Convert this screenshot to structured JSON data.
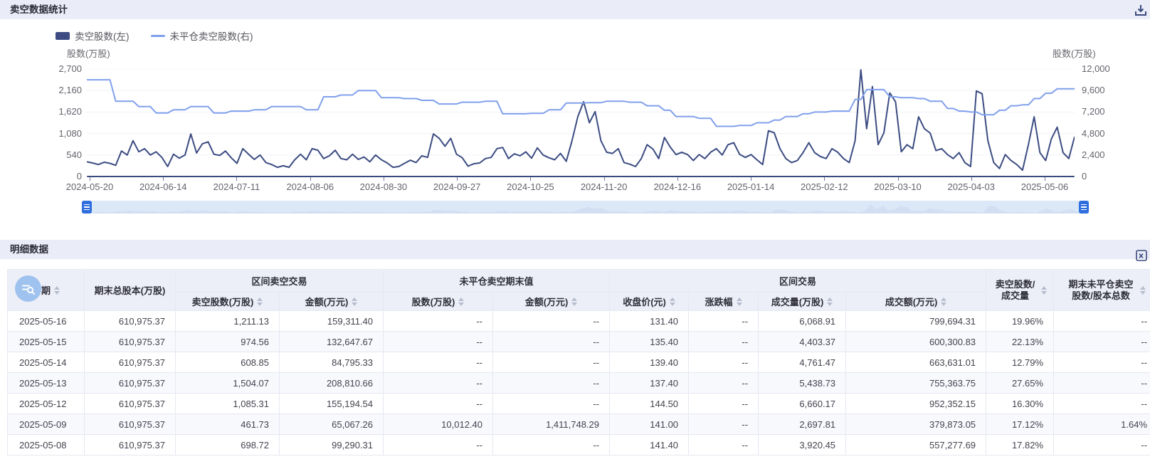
{
  "colors": {
    "accent": "#2e6ede",
    "series_dark": "#3c4c82",
    "series_light": "#81a0ec",
    "panel_strip": "#eaecf7",
    "table_header_bg": "#edeff8",
    "row_stripe": "#f8f9fd"
  },
  "icons": {
    "download": "download-icon",
    "export": "export-excel-icon",
    "column_filter": "column-search-icon",
    "sort": "sort-carets"
  },
  "chart_panel": {
    "title": "卖空数据统计",
    "legend": [
      {
        "label": "卖空股数(左)"
      },
      {
        "label": "未平仓卖空股数(右)"
      }
    ],
    "left_axis_title": "股数(万股)",
    "right_axis_title": "股数(万股)"
  },
  "chart_data": {
    "type": "line",
    "title": "卖空数据统计",
    "grid": true,
    "legend_position": "top-left",
    "x_tick_labels": [
      "2024-05-20",
      "2024-06-14",
      "2024-07-11",
      "2024-08-06",
      "2024-08-30",
      "2024-09-27",
      "2024-10-25",
      "2024-11-20",
      "2024-12-16",
      "2025-01-14",
      "2025-02-12",
      "2025-03-10",
      "2025-04-03",
      "2025-05-06"
    ],
    "left_axis": {
      "label": "股数(万股)",
      "min": 0,
      "max": 2700,
      "ticks": [
        "2,700",
        "2,160",
        "1,620",
        "1,080",
        "540",
        "0"
      ]
    },
    "right_axis": {
      "label": "股数(万股)",
      "min": 0,
      "max": 12000,
      "ticks": [
        "12,000",
        "9,600",
        "7,200",
        "4,800",
        "2,400",
        "0"
      ]
    },
    "series": [
      {
        "name": "卖空股数(左)",
        "axis": "left",
        "color": "#3c4c82",
        "values": [
          370,
          340,
          300,
          360,
          330,
          280,
          640,
          540,
          900,
          620,
          700,
          540,
          620,
          480,
          250,
          560,
          460,
          540,
          1070,
          590,
          820,
          870,
          560,
          530,
          640,
          470,
          330,
          700,
          560,
          430,
          540,
          350,
          300,
          230,
          270,
          230,
          420,
          560,
          420,
          700,
          660,
          450,
          520,
          660,
          450,
          420,
          560,
          430,
          490,
          370,
          540,
          420,
          340,
          230,
          250,
          330,
          410,
          350,
          520,
          480,
          1070,
          960,
          760,
          960,
          560,
          470,
          260,
          320,
          340,
          450,
          480,
          700,
          730,
          450,
          570,
          520,
          620,
          460,
          720,
          540,
          470,
          420,
          580,
          380,
          900,
          1500,
          1880,
          1350,
          1630,
          900,
          610,
          580,
          700,
          350,
          310,
          250,
          450,
          800,
          690,
          450,
          980,
          740,
          550,
          610,
          550,
          400,
          550,
          450,
          610,
          700,
          540,
          800,
          850,
          560,
          480,
          550,
          420,
          300,
          1150,
          1100,
          700,
          450,
          350,
          400,
          600,
          850,
          600,
          500,
          450,
          700,
          610,
          450,
          350,
          900,
          2680,
          1200,
          2260,
          800,
          1100,
          2100,
          1880,
          620,
          800,
          700,
          1500,
          1200,
          1090,
          650,
          700,
          550,
          450,
          600,
          350,
          250,
          2150,
          2080,
          900,
          350,
          200,
          550,
          400,
          300,
          160,
          800,
          1500,
          600,
          400,
          950,
          1240,
          600,
          450,
          1000
        ]
      },
      {
        "name": "未平仓卖空股数(右)",
        "axis": "right",
        "color": "#81a0ec",
        "values_runs": [
          [
            10800,
            5
          ],
          [
            8400,
            4
          ],
          [
            7800,
            3
          ],
          [
            7100,
            3
          ],
          [
            7450,
            3
          ],
          [
            7800,
            4
          ],
          [
            7100,
            3
          ],
          [
            7300,
            4
          ],
          [
            7450,
            3
          ],
          [
            7800,
            6
          ],
          [
            7450,
            3
          ],
          [
            8900,
            3
          ],
          [
            9100,
            3
          ],
          [
            9600,
            4
          ],
          [
            8800,
            4
          ],
          [
            8700,
            3
          ],
          [
            8500,
            3
          ],
          [
            8100,
            4
          ],
          [
            8300,
            4
          ],
          [
            8400,
            3
          ],
          [
            7000,
            5
          ],
          [
            7050,
            3
          ],
          [
            7450,
            3
          ],
          [
            8200,
            4
          ],
          [
            8250,
            3
          ],
          [
            8400,
            4
          ],
          [
            8300,
            3
          ],
          [
            7900,
            3
          ],
          [
            7400,
            2
          ],
          [
            6700,
            4
          ],
          [
            6500,
            3
          ],
          [
            5600,
            4
          ],
          [
            5700,
            3
          ],
          [
            6000,
            3
          ],
          [
            6300,
            2
          ],
          [
            6700,
            3
          ],
          [
            7000,
            2
          ],
          [
            7200,
            3
          ],
          [
            7300,
            4
          ],
          [
            8600,
            2
          ],
          [
            9700,
            4
          ],
          [
            8900,
            2
          ],
          [
            8800,
            3
          ],
          [
            8700,
            2
          ],
          [
            8400,
            3
          ],
          [
            7600,
            2
          ],
          [
            7300,
            2
          ],
          [
            7200,
            2
          ],
          [
            6900,
            3
          ],
          [
            7400,
            2
          ],
          [
            7900,
            2
          ],
          [
            8000,
            2
          ],
          [
            8700,
            2
          ],
          [
            9300,
            2
          ],
          [
            9800,
            4
          ]
        ]
      }
    ]
  },
  "table_panel": {
    "title": "明细数据",
    "header": {
      "date": "日期",
      "total_share": "期末总股本(万股)",
      "group_short": "区间卖空交易",
      "short_shares": "卖空股数(万股)",
      "short_amount": "金额(万元)",
      "group_open": "未平仓卖空期末值",
      "open_shares": "股数(万股)",
      "open_amount": "金额(万元)",
      "group_trade": "区间交易",
      "close_price": "收盘价(元)",
      "change": "涨跌幅",
      "volume": "成交量(万股)",
      "turnover": "成交额(万元)",
      "ratio_short_vol": "卖空股数/成交量",
      "ratio_open_total": "期末未平仓卖空股数/股本总数"
    },
    "rows": [
      [
        "2025-05-16",
        "610,975.37",
        "1,211.13",
        "159,311.40",
        "--",
        "--",
        "131.40",
        "--",
        "6,068.91",
        "799,694.31",
        "19.96%",
        "--"
      ],
      [
        "2025-05-15",
        "610,975.37",
        "974.56",
        "132,647.67",
        "--",
        "--",
        "135.40",
        "--",
        "4,403.37",
        "600,300.83",
        "22.13%",
        "--"
      ],
      [
        "2025-05-14",
        "610,975.37",
        "608.85",
        "84,795.33",
        "--",
        "--",
        "139.40",
        "--",
        "4,761.47",
        "663,631.01",
        "12.79%",
        "--"
      ],
      [
        "2025-05-13",
        "610,975.37",
        "1,504.07",
        "208,810.66",
        "--",
        "--",
        "137.40",
        "--",
        "5,438.73",
        "755,363.75",
        "27.65%",
        "--"
      ],
      [
        "2025-05-12",
        "610,975.37",
        "1,085.31",
        "155,194.54",
        "--",
        "--",
        "144.50",
        "--",
        "6,660.17",
        "952,352.15",
        "16.30%",
        "--"
      ],
      [
        "2025-05-09",
        "610,975.37",
        "461.73",
        "65,067.26",
        "10,012.40",
        "1,411,748.29",
        "141.00",
        "--",
        "2,697.81",
        "379,873.05",
        "17.12%",
        "1.64%"
      ],
      [
        "2025-05-08",
        "610,975.37",
        "698.72",
        "99,290.31",
        "--",
        "--",
        "141.40",
        "--",
        "3,920.45",
        "557,277.69",
        "17.82%",
        "--"
      ]
    ]
  }
}
